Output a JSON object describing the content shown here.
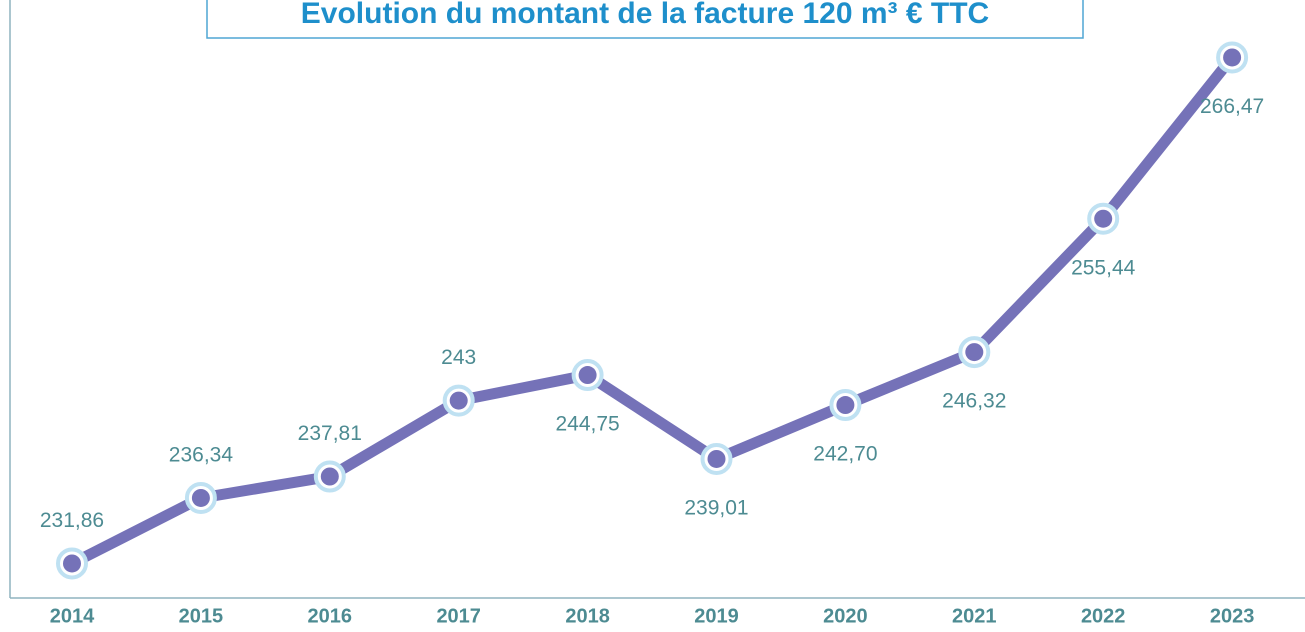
{
  "chart_data": {
    "type": "line",
    "title": "Evolution du montant de la facture 120 m³ € TTC",
    "categories": [
      "2014",
      "2015",
      "2016",
      "2017",
      "2018",
      "2019",
      "2020",
      "2021",
      "2022",
      "2023"
    ],
    "values": [
      231.86,
      236.34,
      237.81,
      243,
      244.75,
      239.01,
      242.7,
      246.32,
      255.44,
      266.47
    ],
    "value_labels": [
      "231,86",
      "236,34",
      "237,81",
      "243",
      "244,75",
      "239,01",
      "242,70",
      "246,32",
      "255,44",
      "266,47"
    ],
    "color": "#7572b8",
    "ylim": [
      229.5,
      270.4
    ]
  }
}
